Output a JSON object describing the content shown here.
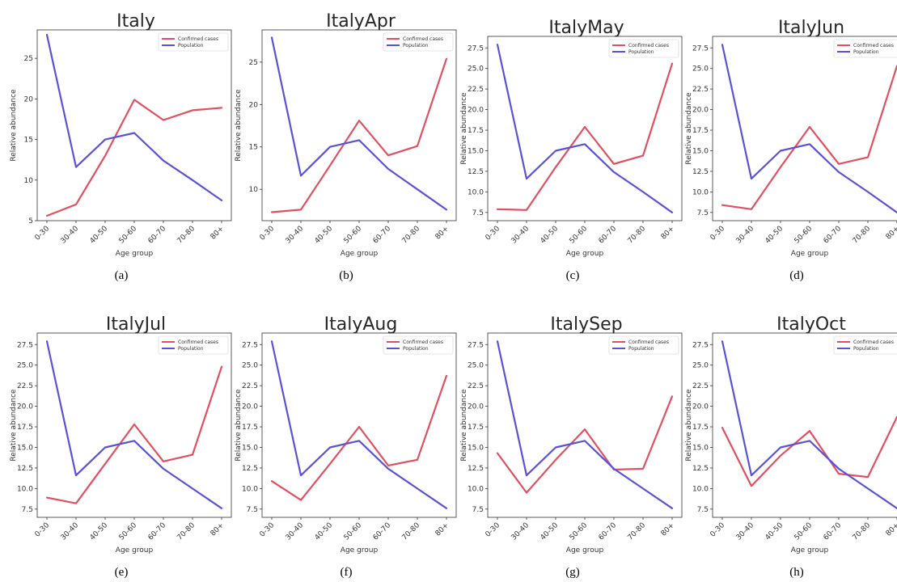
{
  "chart_data": [
    {
      "type": "line",
      "title": "Italy",
      "caption": "(a)",
      "categories": [
        "0-30",
        "30-40",
        "40-50",
        "50-60",
        "60-70",
        "70-80",
        "80+"
      ],
      "xlabel": "Age group",
      "ylabel": "Relative abundance",
      "ylim": [
        5,
        28.5
      ],
      "yticks": [
        "5",
        "10",
        "15",
        "20",
        "25"
      ],
      "legend": "top-right",
      "series": [
        {
          "name": "Confirmed cases",
          "color": "#e05060",
          "values": [
            5.6,
            7.0,
            13.0,
            19.9,
            17.4,
            18.6,
            18.9
          ]
        },
        {
          "name": "Population",
          "color": "#5a52d6",
          "values": [
            27.9,
            11.6,
            15.0,
            15.8,
            12.4,
            10.0,
            7.5
          ]
        }
      ]
    },
    {
      "type": "line",
      "title": "ItalyApr",
      "caption": "(b)",
      "categories": [
        "0-30",
        "30-40",
        "40-50",
        "50-60",
        "60-70",
        "70-80",
        "80+"
      ],
      "xlabel": "Age group",
      "ylabel": "Relative abundance",
      "ylim": [
        6.3,
        28.8
      ],
      "yticks": [
        "10",
        "15",
        "20",
        "25"
      ],
      "legend": "top-right",
      "series": [
        {
          "name": "Confirmed cases",
          "color": "#e05060",
          "values": [
            7.3,
            7.6,
            12.8,
            18.1,
            14.0,
            15.1,
            25.4
          ]
        },
        {
          "name": "Population",
          "color": "#5a52d6",
          "values": [
            27.9,
            11.6,
            15.0,
            15.8,
            12.4,
            10.0,
            7.6
          ]
        }
      ]
    },
    {
      "type": "line",
      "title": "ItalyMay",
      "caption": "(c)",
      "categories": [
        "0-30",
        "30-40",
        "40-50",
        "50-60",
        "60-70",
        "70-80",
        "80+"
      ],
      "xlabel": "Age group",
      "ylabel": "Relative abundance",
      "ylim": [
        6.5,
        28.9
      ],
      "yticks": [
        "7.5",
        "10.0",
        "12.5",
        "15.0",
        "17.5",
        "20.0",
        "22.5",
        "25.0",
        "27.5"
      ],
      "legend": "top-right",
      "series": [
        {
          "name": "Confirmed cases",
          "color": "#e05060",
          "values": [
            7.9,
            7.8,
            13.0,
            17.9,
            13.4,
            14.4,
            25.6
          ]
        },
        {
          "name": "Population",
          "color": "#5a52d6",
          "values": [
            27.9,
            11.6,
            15.0,
            15.8,
            12.4,
            10.0,
            7.5
          ]
        }
      ]
    },
    {
      "type": "line",
      "title": "ItalyJun",
      "caption": "(d)",
      "categories": [
        "0-30",
        "30-40",
        "40-50",
        "50-60",
        "60-70",
        "70-80",
        "80+"
      ],
      "xlabel": "Age group",
      "ylabel": "Relative abundance",
      "ylim": [
        6.5,
        28.9
      ],
      "yticks": [
        "7.5",
        "10.0",
        "12.5",
        "15.0",
        "17.5",
        "20.0",
        "22.5",
        "25.0",
        "27.5"
      ],
      "legend": "top-right",
      "series": [
        {
          "name": "Confirmed cases",
          "color": "#e05060",
          "values": [
            8.4,
            7.9,
            13.0,
            17.9,
            13.4,
            14.2,
            25.3
          ]
        },
        {
          "name": "Population",
          "color": "#5a52d6",
          "values": [
            27.9,
            11.6,
            15.0,
            15.8,
            12.4,
            10.0,
            7.5
          ]
        }
      ]
    },
    {
      "type": "line",
      "title": "ItalyJul",
      "caption": "(e)",
      "categories": [
        "0-30",
        "30-40",
        "40-50",
        "50-60",
        "60-70",
        "70-80",
        "80+"
      ],
      "xlabel": "Age group",
      "ylabel": "Relative abundance",
      "ylim": [
        6.5,
        28.9
      ],
      "yticks": [
        "7.5",
        "10.0",
        "12.5",
        "15.0",
        "17.5",
        "20.0",
        "22.5",
        "25.0",
        "27.5"
      ],
      "legend": "top-right",
      "series": [
        {
          "name": "Confirmed cases",
          "color": "#e05060",
          "values": [
            8.9,
            8.2,
            13.0,
            17.8,
            13.3,
            14.1,
            24.8
          ]
        },
        {
          "name": "Population",
          "color": "#5a52d6",
          "values": [
            27.9,
            11.6,
            15.0,
            15.8,
            12.4,
            10.0,
            7.6
          ]
        }
      ]
    },
    {
      "type": "line",
      "title": "ItalyAug",
      "caption": "(f)",
      "categories": [
        "0-30",
        "30-40",
        "40-50",
        "50-60",
        "60-70",
        "70-80",
        "80+"
      ],
      "xlabel": "Age group",
      "ylabel": "Relative abundance",
      "ylim": [
        6.5,
        28.9
      ],
      "yticks": [
        "7.5",
        "10.0",
        "12.5",
        "15.0",
        "17.5",
        "20.0",
        "22.5",
        "25.0",
        "27.5"
      ],
      "legend": "top-right",
      "series": [
        {
          "name": "Confirmed cases",
          "color": "#e05060",
          "values": [
            10.9,
            8.6,
            13.0,
            17.5,
            12.8,
            13.5,
            23.7
          ]
        },
        {
          "name": "Population",
          "color": "#5a52d6",
          "values": [
            27.9,
            11.6,
            15.0,
            15.8,
            12.4,
            10.0,
            7.6
          ]
        }
      ]
    },
    {
      "type": "line",
      "title": "ItalySep",
      "caption": "(g)",
      "categories": [
        "0-30",
        "30-40",
        "40-50",
        "50-60",
        "60-70",
        "70-80",
        "80+"
      ],
      "xlabel": "Age group",
      "ylabel": "Relative abundance",
      "ylim": [
        6.5,
        28.9
      ],
      "yticks": [
        "7.5",
        "10.0",
        "12.5",
        "15.0",
        "17.5",
        "20.0",
        "22.5",
        "25.0",
        "27.5"
      ],
      "legend": "top-right",
      "series": [
        {
          "name": "Confirmed cases",
          "color": "#e05060",
          "values": [
            14.3,
            9.5,
            13.5,
            17.2,
            12.3,
            12.4,
            21.2
          ]
        },
        {
          "name": "Population",
          "color": "#5a52d6",
          "values": [
            27.9,
            11.6,
            15.0,
            15.8,
            12.4,
            10.0,
            7.6
          ]
        }
      ]
    },
    {
      "type": "line",
      "title": "ItalyOct",
      "caption": "(h)",
      "categories": [
        "0-30",
        "30-40",
        "40-50",
        "50-60",
        "60-70",
        "70-80",
        "80+"
      ],
      "xlabel": "Age group",
      "ylabel": "Relative abundance",
      "ylim": [
        6.5,
        28.9
      ],
      "yticks": [
        "7.5",
        "10.0",
        "12.5",
        "15.0",
        "17.5",
        "20.0",
        "22.5",
        "25.0",
        "27.5"
      ],
      "legend": "top-right",
      "series": [
        {
          "name": "Confirmed cases",
          "color": "#e05060",
          "values": [
            17.4,
            10.3,
            14.0,
            17.0,
            11.8,
            11.4,
            18.7
          ]
        },
        {
          "name": "Population",
          "color": "#5a52d6",
          "values": [
            27.9,
            11.6,
            15.0,
            15.8,
            12.4,
            10.0,
            7.6
          ]
        }
      ]
    }
  ]
}
